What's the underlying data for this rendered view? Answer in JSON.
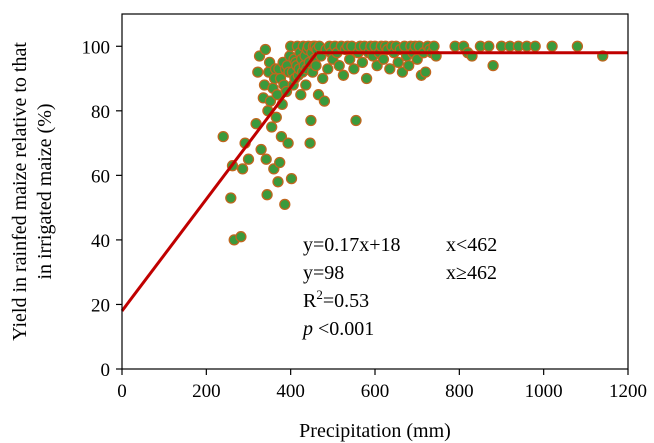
{
  "chart_data": {
    "type": "scatter",
    "title": "",
    "xlabel": "Precipitation (mm)",
    "ylabel_line1": "Yield in rainfed maize relative to that",
    "ylabel_line2": "in irrigated maize (%)",
    "xlim": [
      0,
      1200
    ],
    "ylim": [
      0,
      110
    ],
    "x_ticks": [
      "0",
      "200",
      "400",
      "600",
      "800",
      "1000",
      "1200"
    ],
    "y_ticks": [
      "0",
      "20",
      "40",
      "60",
      "80",
      "100"
    ],
    "grid": false,
    "point_fill": "#3a9a3c",
    "point_stroke": "#c0661e",
    "line_color": "#c00000",
    "fit": {
      "breakpoint": 462,
      "slope": 0.17,
      "intercept": 18,
      "plateau": 98,
      "x_start": 0,
      "x_end": 1200
    },
    "annotations": {
      "eq1": "y=0.17x+18",
      "cond1": "x<462",
      "eq2": "y=98",
      "cond2": "x≥462",
      "r2_prefix": "R",
      "r2_sup": "2",
      "r2_value": "=0.53",
      "p_italic": "p",
      "p_rest": " <0.001"
    },
    "points": [
      [
        240,
        72
      ],
      [
        258,
        53
      ],
      [
        262,
        63
      ],
      [
        266,
        40
      ],
      [
        282,
        41
      ],
      [
        286,
        62
      ],
      [
        292,
        70
      ],
      [
        300,
        65
      ],
      [
        318,
        76
      ],
      [
        322,
        92
      ],
      [
        326,
        97
      ],
      [
        330,
        68
      ],
      [
        335,
        84
      ],
      [
        338,
        88
      ],
      [
        340,
        99
      ],
      [
        342,
        65
      ],
      [
        344,
        54
      ],
      [
        346,
        80
      ],
      [
        348,
        92
      ],
      [
        350,
        95
      ],
      [
        352,
        83
      ],
      [
        355,
        75
      ],
      [
        358,
        87
      ],
      [
        360,
        62
      ],
      [
        362,
        90
      ],
      [
        364,
        93
      ],
      [
        366,
        78
      ],
      [
        368,
        85
      ],
      [
        370,
        58
      ],
      [
        372,
        93
      ],
      [
        374,
        64
      ],
      [
        376,
        90
      ],
      [
        378,
        72
      ],
      [
        380,
        82
      ],
      [
        382,
        95
      ],
      [
        384,
        88
      ],
      [
        386,
        51
      ],
      [
        388,
        93
      ],
      [
        390,
        86
      ],
      [
        392,
        94
      ],
      [
        394,
        70
      ],
      [
        396,
        92
      ],
      [
        398,
        97
      ],
      [
        400,
        100
      ],
      [
        402,
        59
      ],
      [
        404,
        92
      ],
      [
        406,
        88
      ],
      [
        408,
        96
      ],
      [
        410,
        90
      ],
      [
        412,
        95
      ],
      [
        414,
        94
      ],
      [
        416,
        100
      ],
      [
        418,
        91
      ],
      [
        420,
        93
      ],
      [
        422,
        98
      ],
      [
        424,
        85
      ],
      [
        426,
        96
      ],
      [
        428,
        92
      ],
      [
        430,
        100
      ],
      [
        432,
        94
      ],
      [
        434,
        97
      ],
      [
        436,
        88
      ],
      [
        438,
        93
      ],
      [
        440,
        99
      ],
      [
        442,
        100
      ],
      [
        444,
        95
      ],
      [
        446,
        70
      ],
      [
        448,
        77
      ],
      [
        450,
        98
      ],
      [
        452,
        92
      ],
      [
        454,
        100
      ],
      [
        456,
        96
      ],
      [
        458,
        100
      ],
      [
        460,
        94
      ],
      [
        462,
        99
      ],
      [
        466,
        85
      ],
      [
        468,
        100
      ],
      [
        472,
        97
      ],
      [
        476,
        90
      ],
      [
        480,
        83
      ],
      [
        484,
        99
      ],
      [
        488,
        93
      ],
      [
        492,
        100
      ],
      [
        496,
        98
      ],
      [
        500,
        96
      ],
      [
        505,
        100
      ],
      [
        510,
        98
      ],
      [
        515,
        94
      ],
      [
        520,
        100
      ],
      [
        525,
        91
      ],
      [
        530,
        99
      ],
      [
        535,
        100
      ],
      [
        540,
        96
      ],
      [
        545,
        100
      ],
      [
        550,
        93
      ],
      [
        555,
        77
      ],
      [
        560,
        98
      ],
      [
        565,
        100
      ],
      [
        570,
        95
      ],
      [
        575,
        100
      ],
      [
        580,
        90
      ],
      [
        585,
        98
      ],
      [
        590,
        100
      ],
      [
        595,
        97
      ],
      [
        600,
        100
      ],
      [
        605,
        94
      ],
      [
        610,
        98
      ],
      [
        615,
        100
      ],
      [
        620,
        96
      ],
      [
        625,
        100
      ],
      [
        630,
        99
      ],
      [
        635,
        93
      ],
      [
        640,
        100
      ],
      [
        645,
        98
      ],
      [
        650,
        100
      ],
      [
        655,
        95
      ],
      [
        660,
        99
      ],
      [
        665,
        92
      ],
      [
        670,
        100
      ],
      [
        675,
        97
      ],
      [
        680,
        94
      ],
      [
        685,
        100
      ],
      [
        690,
        98
      ],
      [
        695,
        100
      ],
      [
        700,
        96
      ],
      [
        705,
        100
      ],
      [
        710,
        91
      ],
      [
        715,
        98
      ],
      [
        720,
        92
      ],
      [
        725,
        100
      ],
      [
        730,
        99
      ],
      [
        735,
        98
      ],
      [
        740,
        100
      ],
      [
        745,
        97
      ],
      [
        790,
        100
      ],
      [
        810,
        100
      ],
      [
        820,
        98
      ],
      [
        830,
        97
      ],
      [
        850,
        100
      ],
      [
        870,
        100
      ],
      [
        880,
        94
      ],
      [
        900,
        100
      ],
      [
        920,
        100
      ],
      [
        940,
        100
      ],
      [
        960,
        100
      ],
      [
        980,
        100
      ],
      [
        1020,
        100
      ],
      [
        1080,
        100
      ],
      [
        1140,
        97
      ]
    ]
  }
}
